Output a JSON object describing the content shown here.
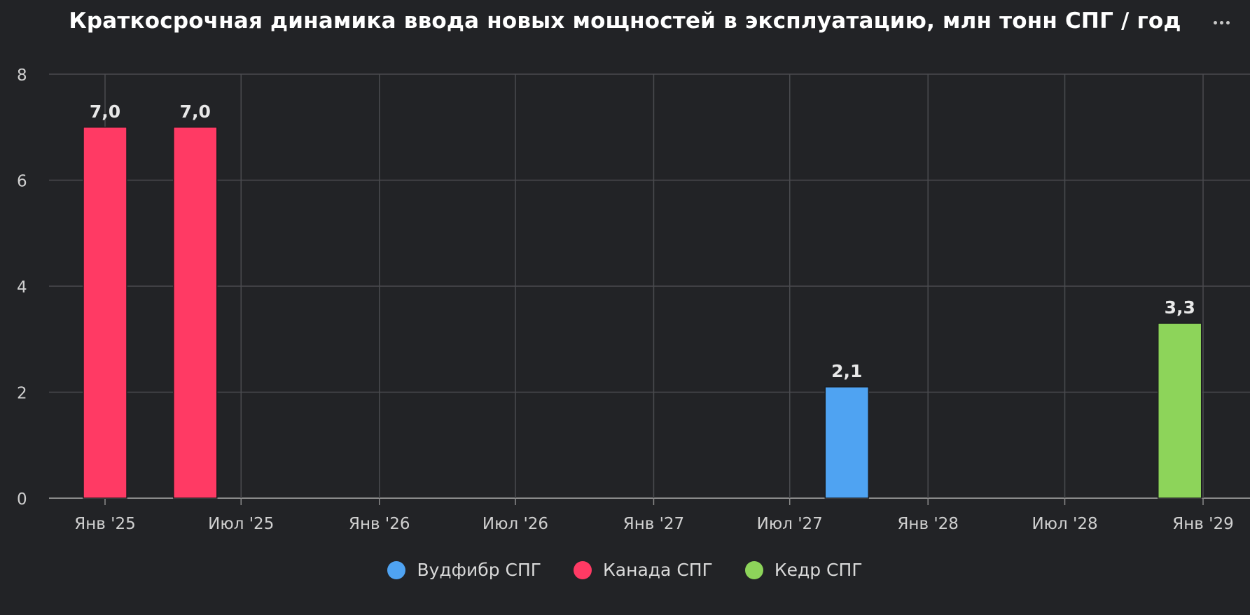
{
  "chart_data": {
    "type": "bar",
    "title": "Краткосрочная динамика ввода новых мощностей в эксплуатацию, млн тонн СПГ / год",
    "xlabel": "",
    "ylabel": "",
    "x_axis": {
      "type": "date",
      "range": [
        "2024-11-26",
        "2029-01-01"
      ],
      "ticks": [
        {
          "date": "2025-01-01",
          "label": "Янв '25"
        },
        {
          "date": "2025-07-01",
          "label": "Июл '25"
        },
        {
          "date": "2026-01-01",
          "label": "Янв '26"
        },
        {
          "date": "2026-07-01",
          "label": "Июл '26"
        },
        {
          "date": "2027-01-01",
          "label": "Янв '27"
        },
        {
          "date": "2027-07-01",
          "label": "Июл '27"
        },
        {
          "date": "2028-01-01",
          "label": "Янв '28"
        },
        {
          "date": "2028-07-01",
          "label": "Июл '28"
        },
        {
          "date": "2029-01-01",
          "label": "Янв '29"
        }
      ]
    },
    "ylim": [
      0,
      8
    ],
    "y_ticks": [
      0,
      2,
      4,
      6,
      8
    ],
    "grid": true,
    "legend_position": "bottom",
    "series": [
      {
        "name": "Вудфибр СПГ",
        "color": "#4fa3f2",
        "points": [
          {
            "x": "2027-09-15",
            "y": 2.1,
            "label": "2,1"
          }
        ]
      },
      {
        "name": "Канада СПГ",
        "color": "#ff3a64",
        "points": [
          {
            "x": "2025-01-01",
            "y": 7.0,
            "label": "7,0"
          },
          {
            "x": "2025-05-01",
            "y": 7.0,
            "label": "7,0"
          }
        ]
      },
      {
        "name": "Кедр СПГ",
        "color": "#8dd45a",
        "points": [
          {
            "x": "2028-12-01",
            "y": 3.3,
            "label": "3,3"
          }
        ]
      }
    ]
  },
  "menu": {
    "icon": "more-horizontal-icon"
  }
}
